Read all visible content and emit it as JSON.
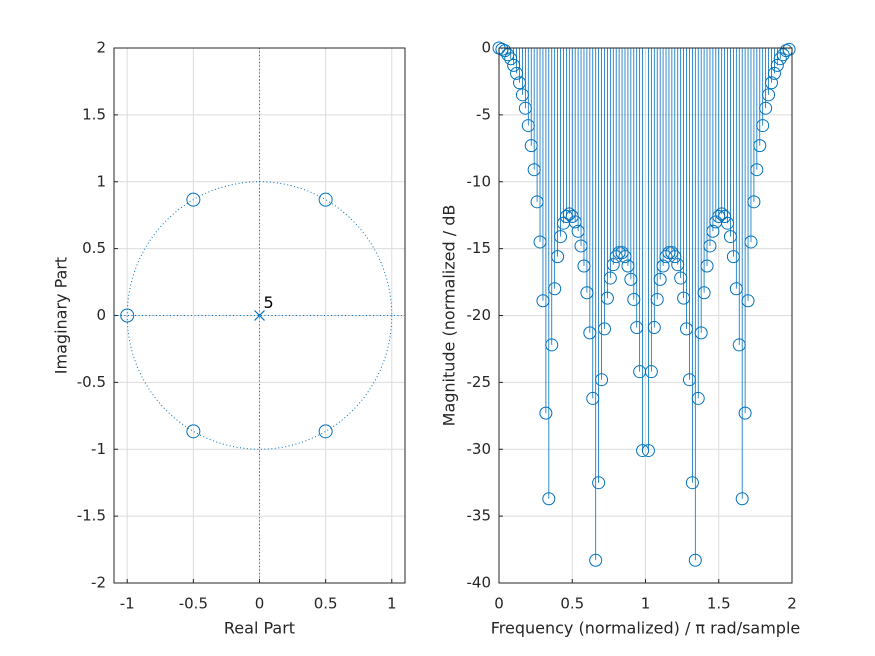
{
  "chart_data": [
    {
      "type": "zplane",
      "xlabel": "Real Part",
      "ylabel": "Imaginary Part",
      "zeros": {
        "x": [
          -1,
          -0.5,
          -0.5,
          0.5,
          0.5
        ],
        "y": [
          0,
          0.866,
          -0.866,
          0.866,
          -0.866
        ]
      },
      "poles": {
        "x": [
          0
        ],
        "y": [
          0
        ],
        "multiplicity": [
          5
        ]
      },
      "xlim": [
        -1.1,
        1.1
      ],
      "ylim": [
        -2,
        2
      ],
      "xticks": [
        -1,
        -0.5,
        0,
        0.5,
        1
      ],
      "yticks": [
        -2,
        -1.5,
        -1,
        -0.5,
        0,
        0.5,
        1,
        1.5,
        2
      ],
      "grid": true,
      "unit_circle": true,
      "color": "#0072bd"
    },
    {
      "type": "stem",
      "xlabel": "Frequency (normalized) / π rad/sample",
      "ylabel": "Magnitude (normalized / dB",
      "x": [
        0,
        0.02,
        0.04,
        0.06,
        0.08,
        0.1,
        0.12,
        0.14,
        0.16,
        0.18,
        0.2,
        0.22,
        0.24,
        0.26,
        0.28,
        0.3,
        0.32,
        0.34,
        0.36,
        0.38,
        0.4,
        0.42,
        0.44,
        0.46,
        0.48,
        0.5,
        0.52,
        0.54,
        0.56,
        0.58,
        0.6,
        0.62,
        0.64,
        0.66,
        0.68,
        0.7,
        0.72,
        0.74,
        0.76,
        0.78,
        0.8,
        0.82,
        0.84,
        0.86,
        0.88,
        0.9,
        0.92,
        0.94,
        0.96,
        0.98,
        1,
        1.02,
        1.04,
        1.06,
        1.08,
        1.1,
        1.12,
        1.14,
        1.16,
        1.18,
        1.2,
        1.22,
        1.24,
        1.26,
        1.28,
        1.3,
        1.32,
        1.34,
        1.36,
        1.38,
        1.4,
        1.42,
        1.44,
        1.46,
        1.48,
        1.5,
        1.52,
        1.54,
        1.56,
        1.58,
        1.6,
        1.62,
        1.64,
        1.66,
        1.68,
        1.7,
        1.72,
        1.74,
        1.76,
        1.78,
        1.8,
        1.82,
        1.84,
        1.86,
        1.88,
        1.9,
        1.92,
        1.94,
        1.96,
        1.98
      ],
      "values": [
        0,
        -0.1,
        -0.2,
        -0.5,
        -0.8,
        -1.3,
        -1.9,
        -2.6,
        -3.5,
        -4.5,
        -5.8,
        -7.3,
        -9.1,
        -11.5,
        -14.5,
        -18.9,
        -27.3,
        -33.7,
        -22.2,
        -18.0,
        -15.6,
        -14.1,
        -13.1,
        -12.6,
        -12.4,
        -12.6,
        -13.0,
        -13.7,
        -14.8,
        -16.3,
        -18.3,
        -21.3,
        -26.2,
        -38.3,
        -32.5,
        -24.8,
        -21.0,
        -18.7,
        -17.2,
        -16.2,
        -15.6,
        -15.3,
        -15.3,
        -15.6,
        -16.3,
        -17.3,
        -18.8,
        -20.9,
        -24.2,
        -30.1,
        null,
        -30.1,
        -24.2,
        -20.9,
        -18.8,
        -17.3,
        -16.3,
        -15.6,
        -15.3,
        -15.3,
        -15.6,
        -16.2,
        -17.2,
        -18.7,
        -21.0,
        -24.8,
        -32.5,
        -38.3,
        -26.2,
        -21.3,
        -18.3,
        -16.3,
        -14.8,
        -13.7,
        -13.0,
        -12.6,
        -12.4,
        -12.6,
        -13.1,
        -14.1,
        -15.6,
        -18.0,
        -22.2,
        -33.7,
        -27.3,
        -18.9,
        -14.5,
        -11.5,
        -9.1,
        -7.3,
        -5.8,
        -4.5,
        -3.5,
        -2.6,
        -1.9,
        -1.3,
        -0.8,
        -0.5,
        -0.2,
        -0.1
      ],
      "xlim": [
        0,
        2
      ],
      "ylim": [
        -40,
        0
      ],
      "xticks": [
        0,
        0.5,
        1,
        1.5,
        2
      ],
      "yticks": [
        -40,
        -35,
        -30,
        -25,
        -20,
        -15,
        -10,
        -5,
        0
      ],
      "grid": true,
      "color": "#0072bd"
    }
  ]
}
